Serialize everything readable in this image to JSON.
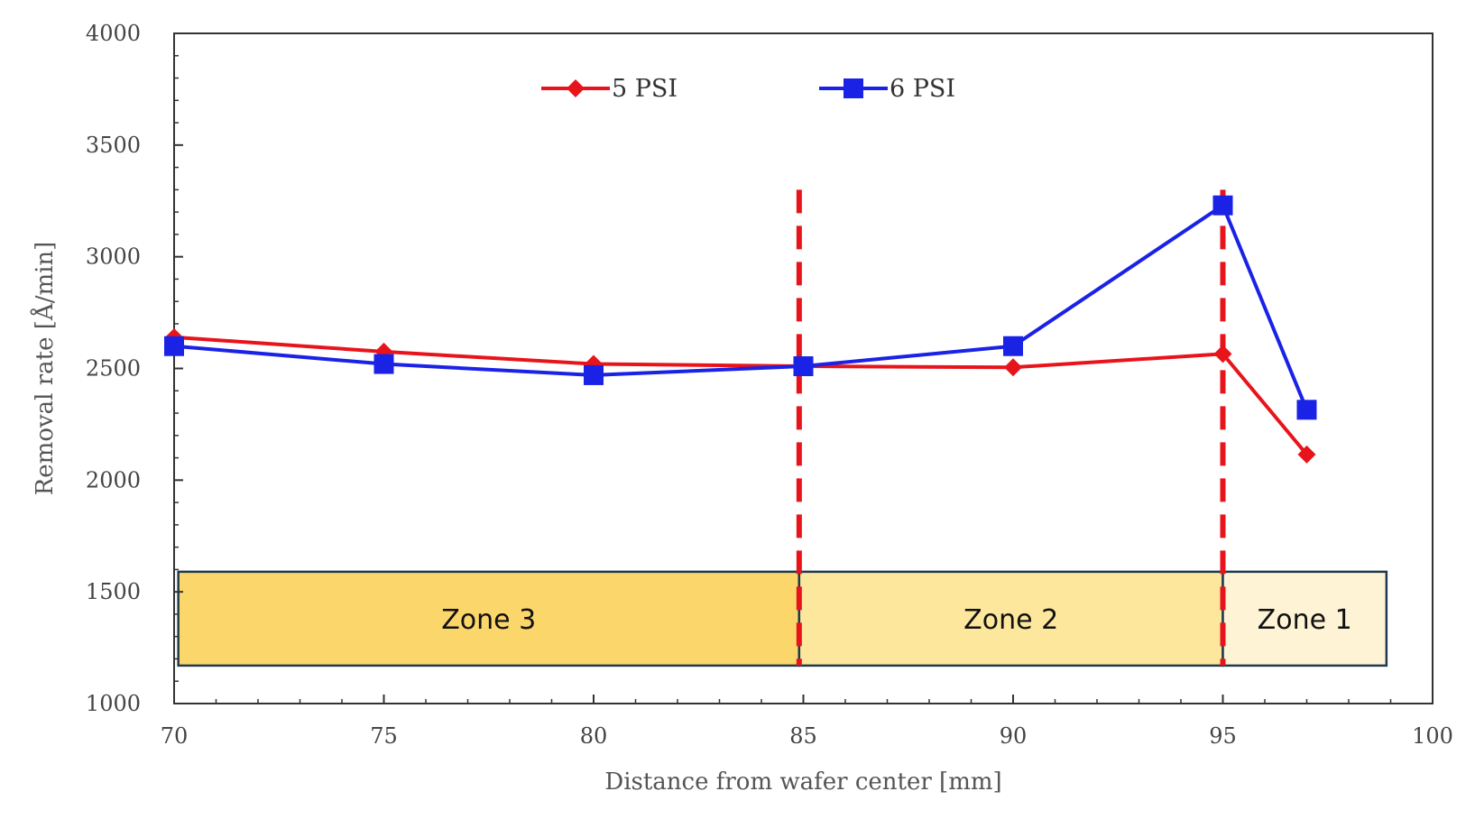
{
  "chart_data": {
    "type": "line",
    "xlabel": "Distance from wafer center [mm]",
    "ylabel": "Removal rate [Å/min]",
    "xlim": [
      70,
      100
    ],
    "ylim": [
      1000,
      4000
    ],
    "x_ticks": [
      "70",
      "75",
      "80",
      "85",
      "90",
      "95",
      "100"
    ],
    "y_ticks": [
      "1000",
      "1500",
      "2000",
      "2500",
      "3000",
      "3500",
      "4000"
    ],
    "grid": false,
    "legend_position": "top-center",
    "series": [
      {
        "name": "5 PSI",
        "color": "#e8141b",
        "marker": "diamond",
        "x": [
          70,
          75,
          80,
          85,
          90,
          95,
          97
        ],
        "y": [
          2640,
          2575,
          2520,
          2510,
          2505,
          2565,
          2115
        ]
      },
      {
        "name": "6 PSI",
        "color": "#1a22e6",
        "marker": "square",
        "x": [
          70,
          75,
          80,
          85,
          90,
          95,
          97
        ],
        "y": [
          2600,
          2520,
          2470,
          2510,
          2600,
          3230,
          2315
        ]
      }
    ],
    "zones": [
      {
        "label": "Zone 3",
        "x_start": 70.1,
        "x_end": 84.9,
        "y_top": 1590,
        "y_bottom": 1170,
        "color": "#fbd66a"
      },
      {
        "label": "Zone 2",
        "x_start": 84.9,
        "x_end": 95.0,
        "y_top": 1590,
        "y_bottom": 1170,
        "color": "#fde79d"
      },
      {
        "label": "Zone 1",
        "x_start": 95.0,
        "x_end": 98.9,
        "y_top": 1590,
        "y_bottom": 1170,
        "color": "#fff3d6"
      }
    ],
    "vertical_lines": [
      {
        "x": 84.9,
        "y_top": 3300,
        "color": "#e8141b"
      },
      {
        "x": 95.0,
        "y_top": 3300,
        "color": "#e8141b"
      }
    ]
  }
}
